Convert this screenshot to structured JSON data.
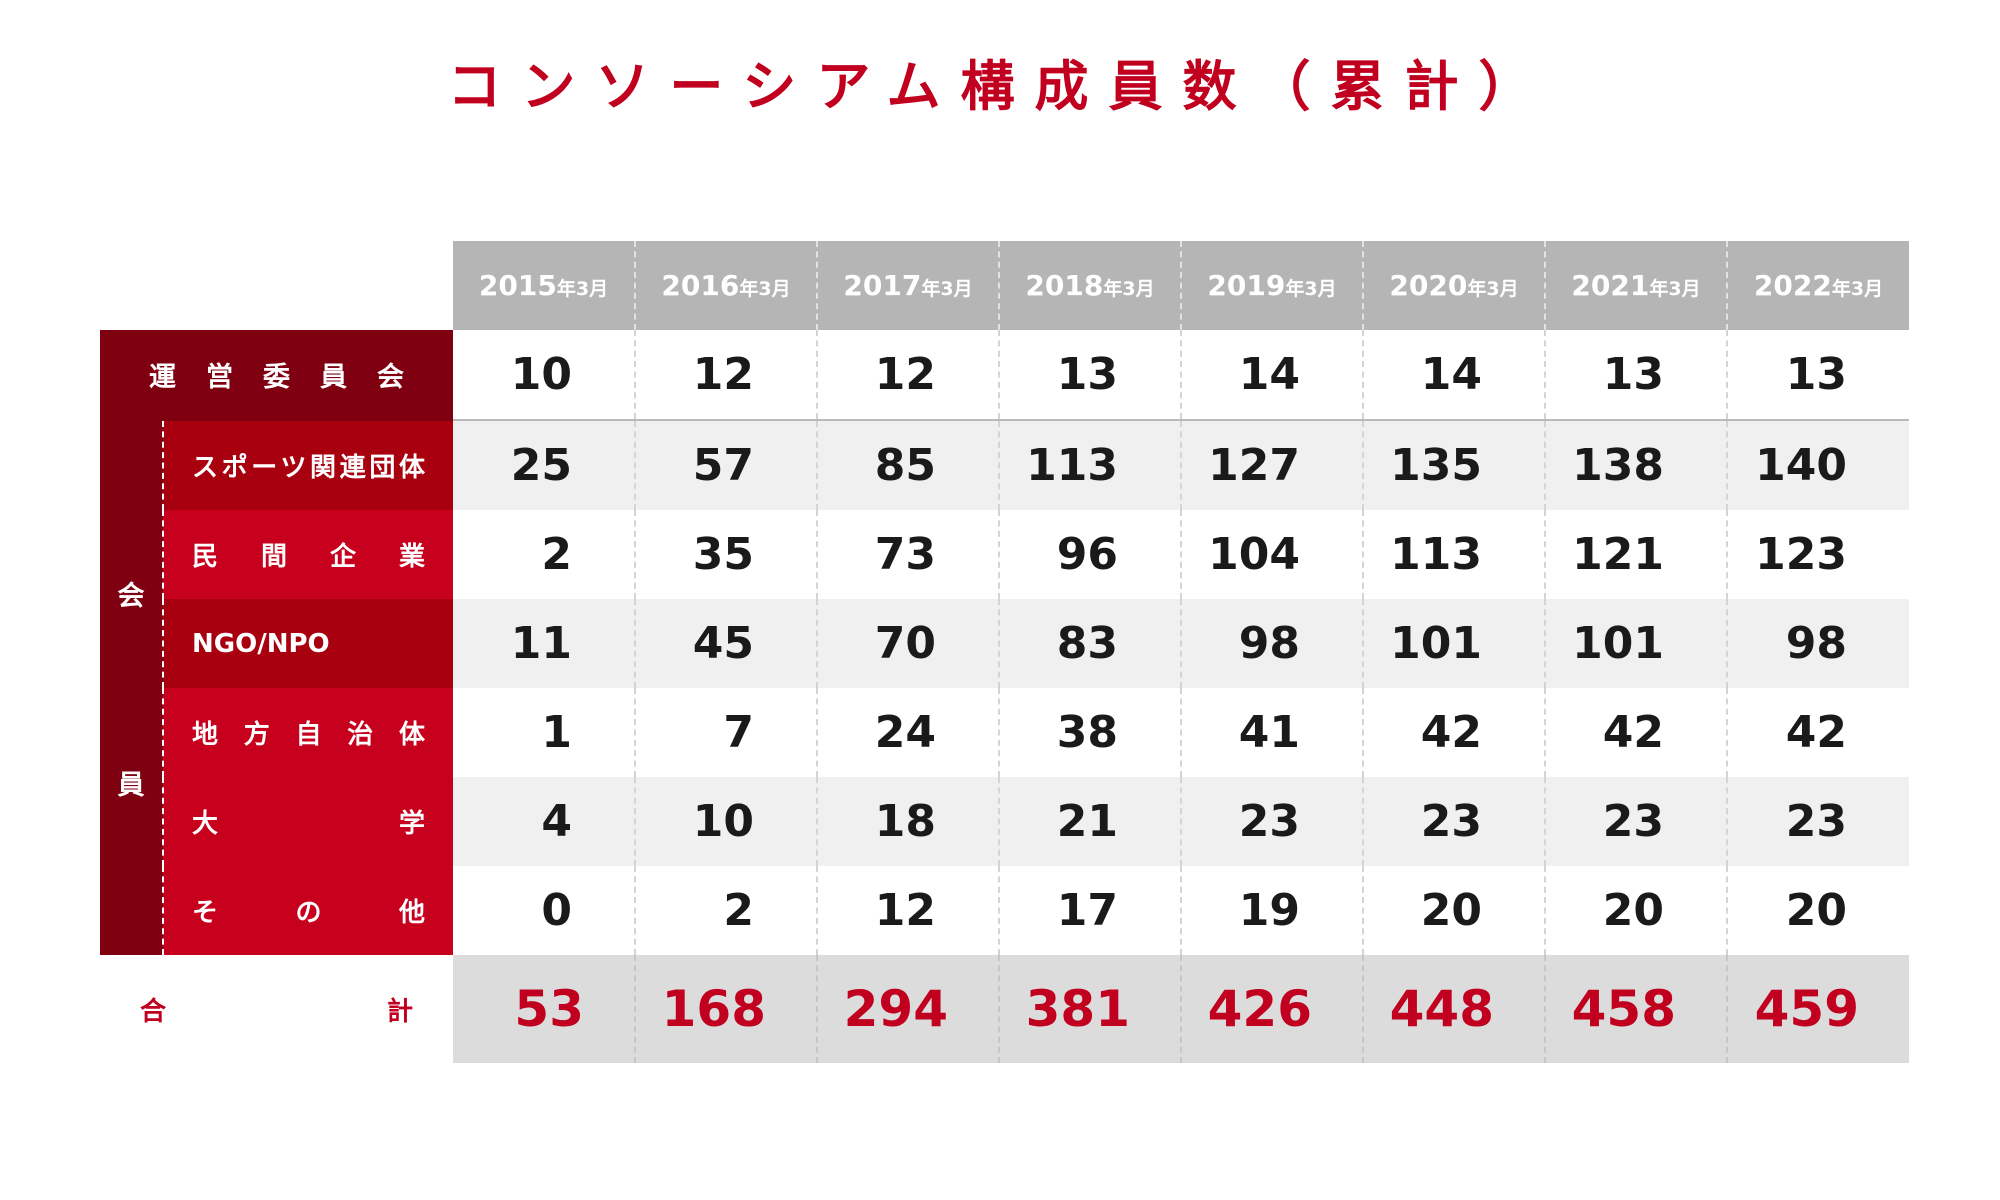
{
  "title": "コンソーシアム構成員数（累計）",
  "chart_data": {
    "type": "table",
    "title": "コンソーシアム構成員数（累計）",
    "columns": [
      {
        "year": "2015",
        "suffix": "年3月"
      },
      {
        "year": "2016",
        "suffix": "年3月"
      },
      {
        "year": "2017",
        "suffix": "年3月"
      },
      {
        "year": "2018",
        "suffix": "年3月"
      },
      {
        "year": "2019",
        "suffix": "年3月"
      },
      {
        "year": "2020",
        "suffix": "年3月"
      },
      {
        "year": "2021",
        "suffix": "年3月"
      },
      {
        "year": "2022",
        "suffix": "年3月"
      }
    ],
    "committee": {
      "label": "運営委員会",
      "values": [
        10,
        12,
        12,
        13,
        14,
        14,
        13,
        13
      ]
    },
    "members_group": {
      "label_top": "会",
      "label_bottom": "員",
      "rows": [
        {
          "label": "スポーツ関連団体",
          "values": [
            25,
            57,
            85,
            113,
            127,
            135,
            138,
            140
          ]
        },
        {
          "label": "民間企業",
          "values": [
            2,
            35,
            73,
            96,
            104,
            113,
            121,
            123
          ]
        },
        {
          "label": "NGO/NPO",
          "values": [
            11,
            45,
            70,
            83,
            98,
            101,
            101,
            98
          ]
        },
        {
          "label": "地方自治体",
          "values": [
            1,
            7,
            24,
            38,
            41,
            42,
            42,
            42
          ]
        },
        {
          "label": "大学",
          "values": [
            4,
            10,
            18,
            21,
            23,
            23,
            23,
            23
          ]
        },
        {
          "label": "その他",
          "values": [
            0,
            2,
            12,
            17,
            19,
            20,
            20,
            20
          ]
        }
      ]
    },
    "total": {
      "label": "合計",
      "values": [
        53,
        168,
        294,
        381,
        426,
        448,
        458,
        459
      ]
    }
  },
  "colors": {
    "title_red": "#c1001f",
    "dark_red": "#7f0010",
    "mid_red": "#a8000f",
    "bright_red": "#c7001d",
    "header_gray": "#b5b5b5",
    "total_gray": "#dcdcdc",
    "stripe_gray": "#f0f0f0"
  }
}
